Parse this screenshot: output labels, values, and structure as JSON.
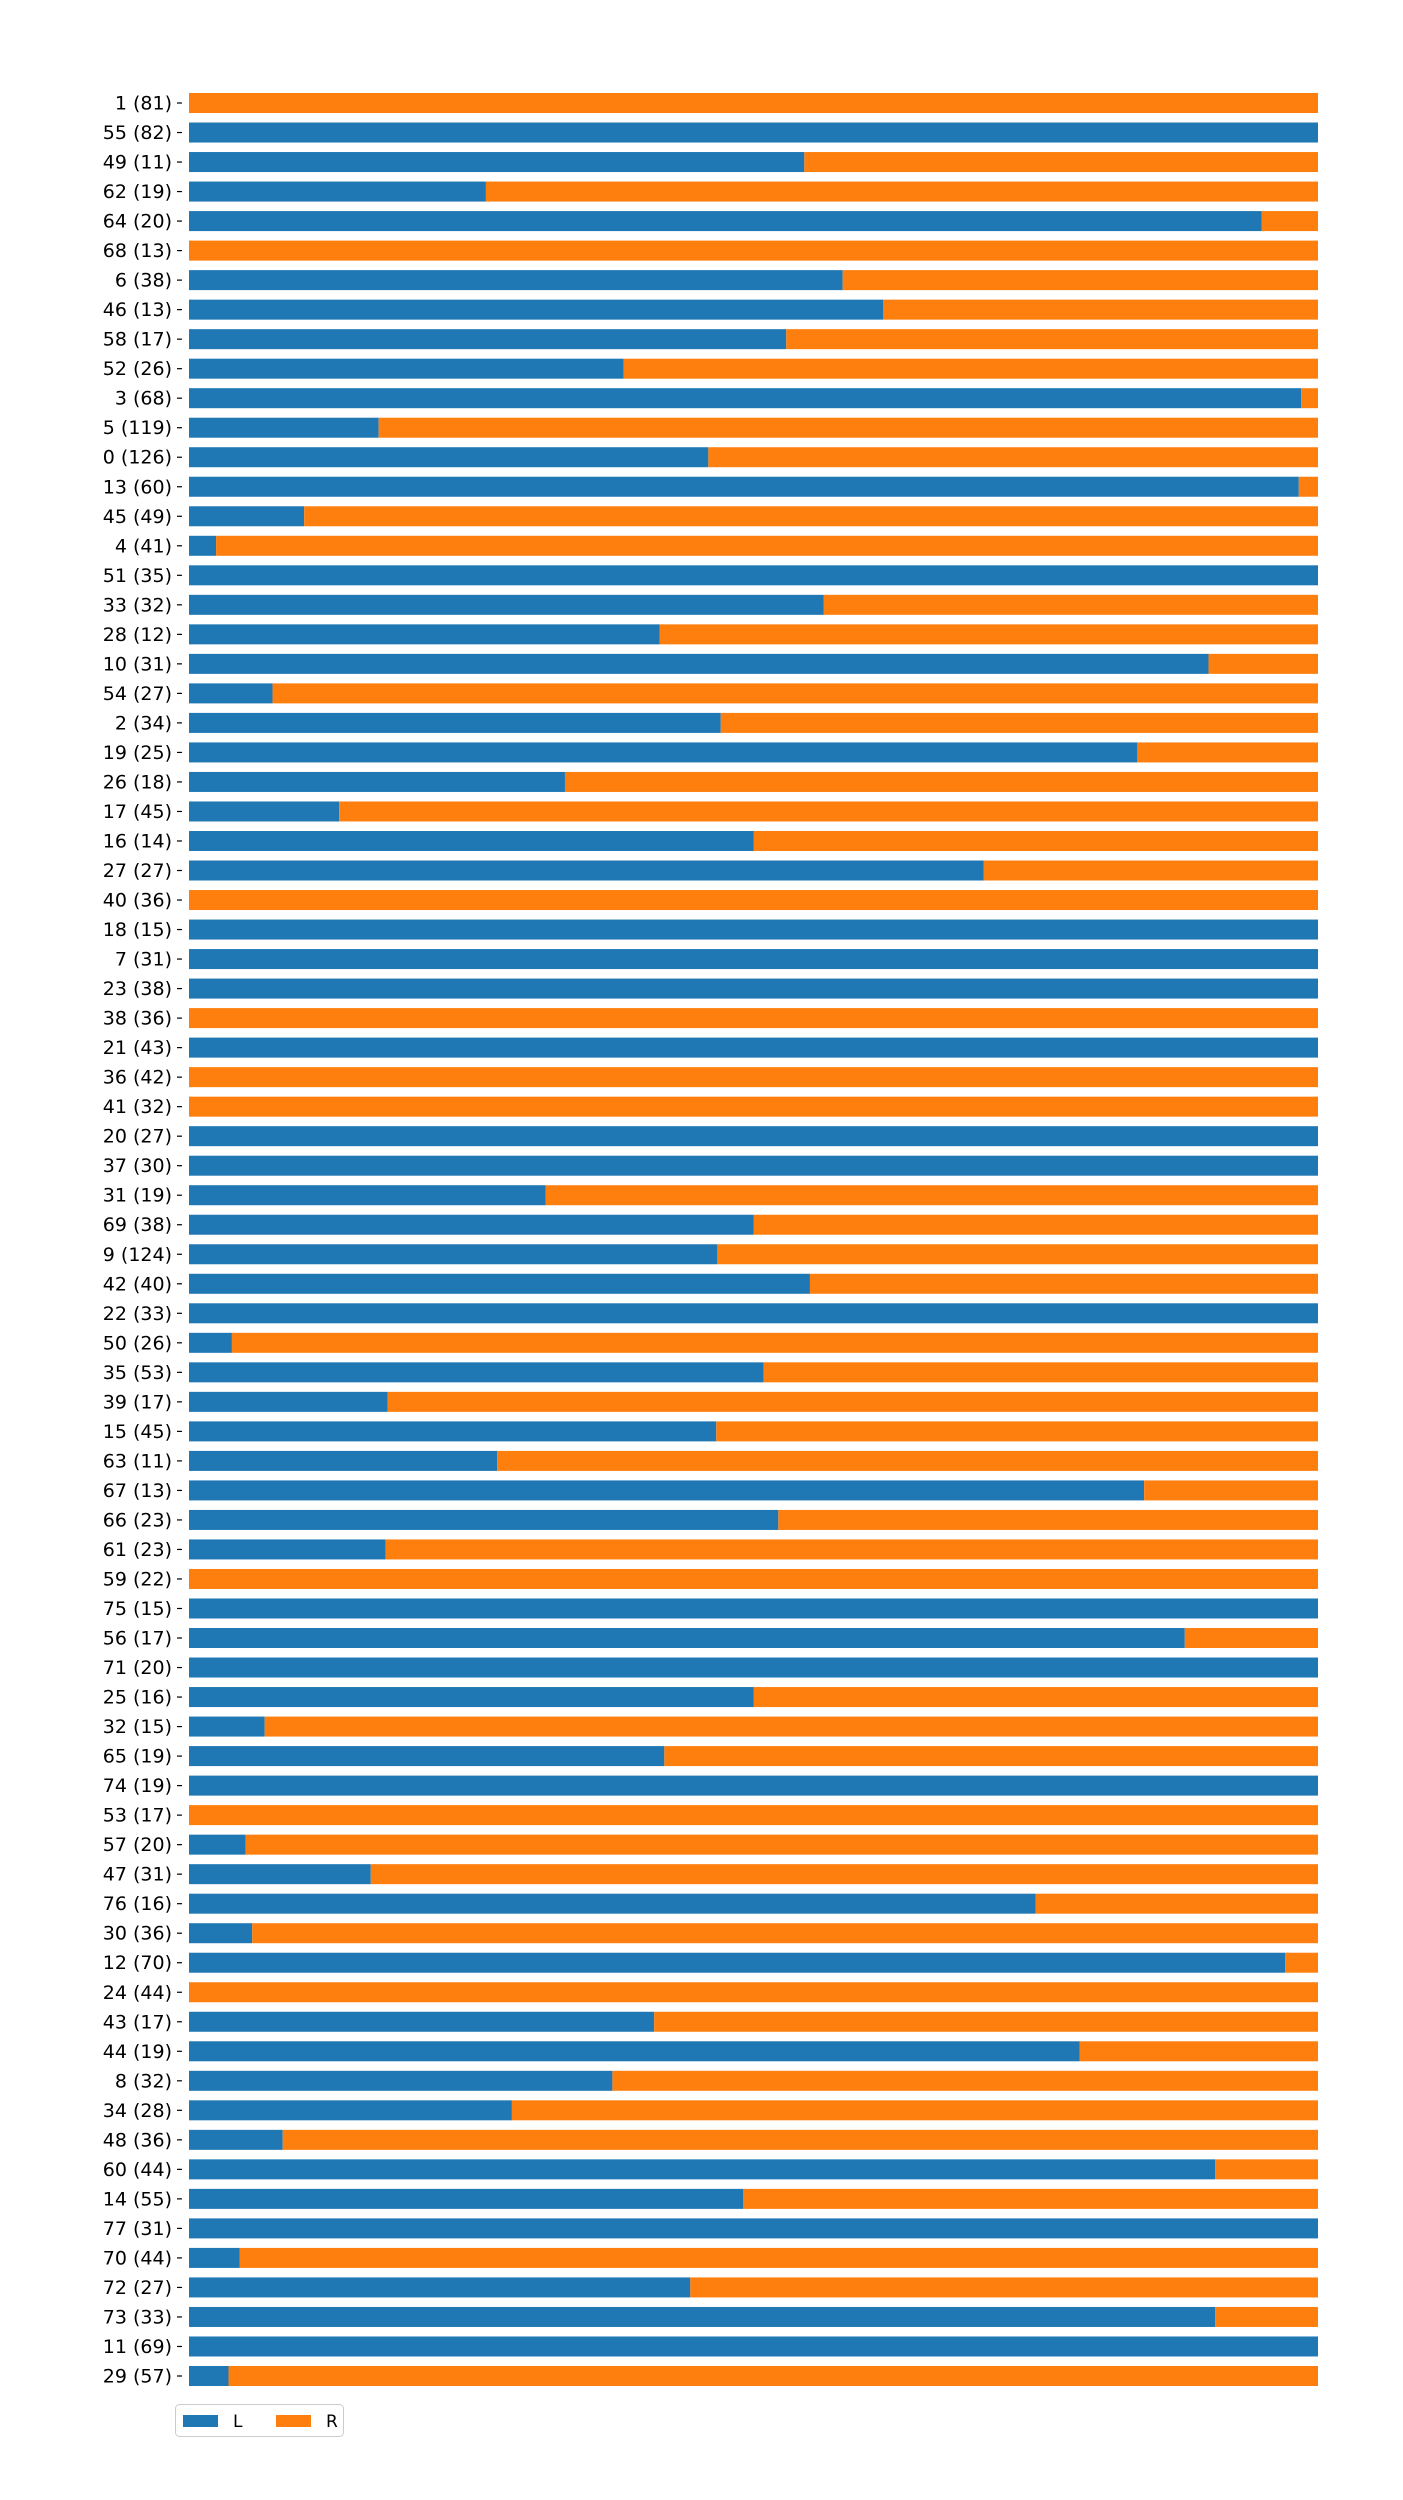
{
  "chart_data": {
    "type": "bar",
    "orientation": "horizontal",
    "stacked": true,
    "normalized": true,
    "xlim": [
      0,
      1
    ],
    "grid": false,
    "legend_position": "bottom-left",
    "categories": [
      "1 (81)",
      "55 (82)",
      "49 (11)",
      "62 (19)",
      "64 (20)",
      "68 (13)",
      "6 (38)",
      "46 (13)",
      "58 (17)",
      "52 (26)",
      "3 (68)",
      "5 (119)",
      "0 (126)",
      "13 (60)",
      "45 (49)",
      "4 (41)",
      "51 (35)",
      "33 (32)",
      "28 (12)",
      "10 (31)",
      "54 (27)",
      "2 (34)",
      "19 (25)",
      "26 (18)",
      "17 (45)",
      "16 (14)",
      "27 (27)",
      "40 (36)",
      "18 (15)",
      "7 (31)",
      "23 (38)",
      "38 (36)",
      "21 (43)",
      "36 (42)",
      "41 (32)",
      "20 (27)",
      "37 (30)",
      "31 (19)",
      "69 (38)",
      "9 (124)",
      "42 (40)",
      "22 (33)",
      "50 (26)",
      "35 (53)",
      "39 (17)",
      "15 (45)",
      "63 (11)",
      "67 (13)",
      "66 (23)",
      "61 (23)",
      "59 (22)",
      "75 (15)",
      "56 (17)",
      "71 (20)",
      "25 (16)",
      "32 (15)",
      "65 (19)",
      "74 (19)",
      "53 (17)",
      "57 (20)",
      "47 (31)",
      "76 (16)",
      "30 (36)",
      "12 (70)",
      "24 (44)",
      "43 (17)",
      "44 (19)",
      "8 (32)",
      "34 (28)",
      "48 (36)",
      "60 (44)",
      "14 (55)",
      "77 (31)",
      "70 (44)",
      "72 (27)",
      "73 (33)",
      "11 (69)",
      "29 (57)"
    ],
    "series": [
      {
        "name": "L",
        "color": "#1f77b4",
        "values": [
          0.0,
          1.0,
          0.545,
          0.263,
          0.95,
          0.0,
          0.579,
          0.615,
          0.529,
          0.385,
          0.985,
          0.168,
          0.46,
          0.983,
          0.102,
          0.024,
          1.0,
          0.562,
          0.417,
          0.903,
          0.074,
          0.471,
          0.84,
          0.333,
          0.133,
          0.5,
          0.704,
          0.0,
          1.0,
          1.0,
          1.0,
          0.0,
          1.0,
          0.0,
          0.0,
          1.0,
          1.0,
          0.316,
          0.5,
          0.468,
          0.55,
          1.0,
          0.038,
          0.509,
          0.176,
          0.467,
          0.273,
          0.846,
          0.522,
          0.174,
          0.0,
          1.0,
          0.882,
          1.0,
          0.5,
          0.067,
          0.421,
          1.0,
          0.0,
          0.05,
          0.161,
          0.75,
          0.056,
          0.971,
          0.0,
          0.412,
          0.789,
          0.375,
          0.286,
          0.083,
          0.909,
          0.491,
          1.0,
          0.045,
          0.444,
          0.909,
          1.0,
          0.035
        ]
      },
      {
        "name": "R",
        "color": "#ff7f0e",
        "values": [
          1.0,
          0.0,
          0.455,
          0.737,
          0.05,
          1.0,
          0.421,
          0.385,
          0.471,
          0.615,
          0.015,
          0.832,
          0.54,
          0.017,
          0.898,
          0.976,
          0.0,
          0.438,
          0.583,
          0.097,
          0.926,
          0.529,
          0.16,
          0.667,
          0.867,
          0.5,
          0.296,
          1.0,
          0.0,
          0.0,
          0.0,
          1.0,
          0.0,
          1.0,
          1.0,
          0.0,
          0.0,
          0.684,
          0.5,
          0.532,
          0.45,
          0.0,
          0.962,
          0.491,
          0.824,
          0.533,
          0.727,
          0.154,
          0.478,
          0.826,
          1.0,
          0.0,
          0.118,
          0.0,
          0.5,
          0.933,
          0.579,
          0.0,
          1.0,
          0.95,
          0.839,
          0.25,
          0.944,
          0.029,
          1.0,
          0.588,
          0.211,
          0.625,
          0.714,
          0.917,
          0.091,
          0.509,
          0.0,
          0.955,
          0.556,
          0.091,
          0.0,
          0.965
        ]
      }
    ],
    "legend": [
      "L",
      "R"
    ]
  }
}
